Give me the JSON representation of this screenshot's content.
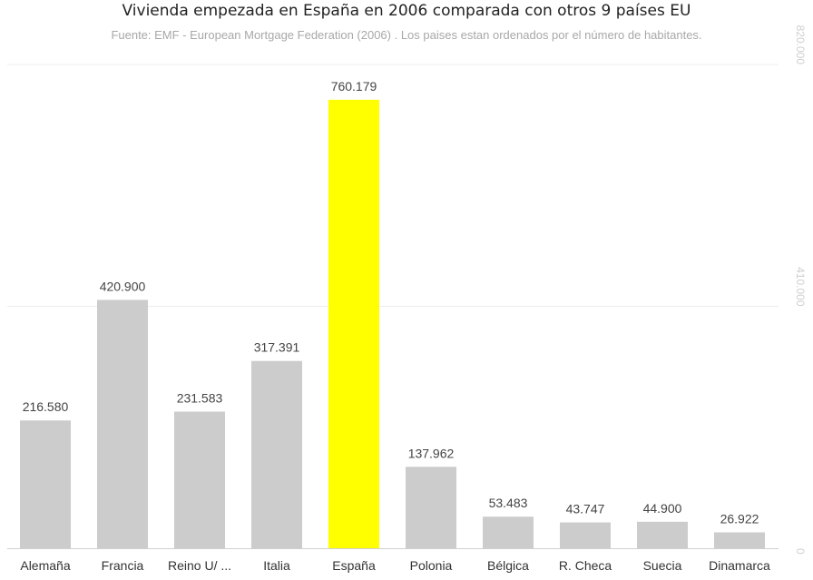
{
  "chart_data": {
    "type": "bar",
    "title": "Vivienda empezada en España en 2006 comparada con otros 9 países EU",
    "subtitle": "Fuente: EMF - European Mortgage Federation (2006) . Los paises estan ordenados por el número de habitantes.",
    "categories": [
      "Alemaña",
      "Francia",
      "Reino U/ ...",
      "Italia",
      "España",
      "Polonia",
      "Bélgica",
      "R. Checa",
      "Suecia",
      "Dinamarca"
    ],
    "values": [
      216580,
      420900,
      231583,
      317391,
      760179,
      137962,
      53483,
      43747,
      44900,
      26922
    ],
    "value_labels": [
      "216.580",
      "420.900",
      "231.583",
      "317.391",
      "760.179",
      "137.962",
      "53.483",
      "43.747",
      "44.900",
      "26.922"
    ],
    "ylim": [
      0,
      820000
    ],
    "yticks": [
      0,
      410000,
      820000
    ],
    "ytick_labels": [
      "0",
      "410.000",
      "820.000"
    ],
    "grid": true,
    "y_axis_position": "right",
    "colors": {
      "default": "#cccccc",
      "highlight": "#ffff00",
      "highlight_category": "España"
    }
  }
}
